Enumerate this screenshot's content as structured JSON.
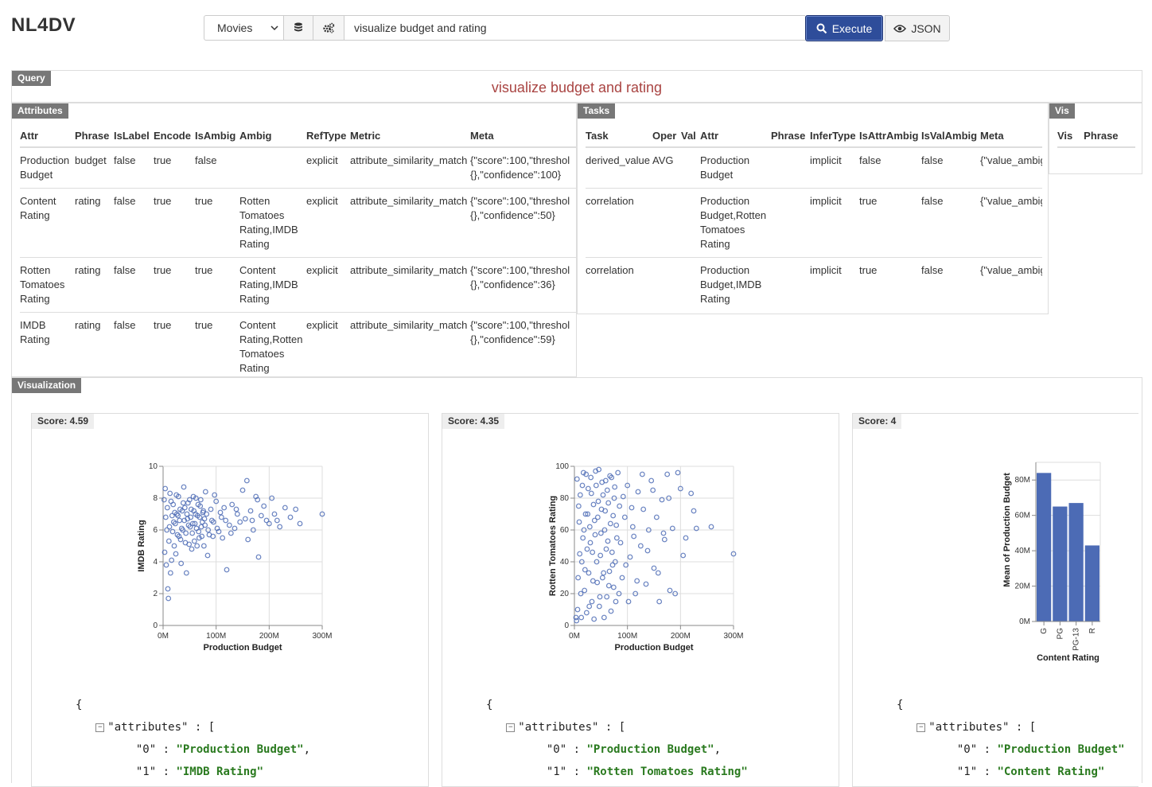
{
  "app": {
    "title": "NL4DV"
  },
  "toolbar": {
    "dataset": "Movies",
    "query": "visualize budget and rating",
    "execute_label": "Execute",
    "json_label": "JSON",
    "accent": "#2e4d9a"
  },
  "panels": {
    "query_tag": "Query",
    "query_text": "visualize budget and rating",
    "attributes_tag": "Attributes",
    "tasks_tag": "Tasks",
    "vis_tag": "Vis",
    "visualization_tag": "Visualization"
  },
  "attributes_table": {
    "headers": [
      "Attr",
      "Phrase",
      "IsLabel",
      "Encode",
      "IsAmbig",
      "Ambig",
      "RefType",
      "Metric",
      "Meta"
    ],
    "rows": [
      {
        "attr": "Production Budget",
        "phrase": "budget",
        "islabel": "false",
        "encode": "true",
        "isambig": "false",
        "ambig": "",
        "reftype": "explicit",
        "metric": "attribute_similarity_match",
        "meta1": "{\"score\":100,\"threshol",
        "meta2": "{},\"confidence\":100}"
      },
      {
        "attr": "Content Rating",
        "phrase": "rating",
        "islabel": "false",
        "encode": "true",
        "isambig": "true",
        "ambig": "Rotten Tomatoes Rating,IMDB Rating",
        "reftype": "explicit",
        "metric": "attribute_similarity_match",
        "meta1": "{\"score\":100,\"threshol",
        "meta2": "{},\"confidence\":50}"
      },
      {
        "attr": "Rotten Tomatoes Rating",
        "phrase": "rating",
        "islabel": "false",
        "encode": "true",
        "isambig": "true",
        "ambig": "Content Rating,IMDB Rating",
        "reftype": "explicit",
        "metric": "attribute_similarity_match",
        "meta1": "{\"score\":100,\"threshol",
        "meta2": "{},\"confidence\":36}"
      },
      {
        "attr": "IMDB Rating",
        "phrase": "rating",
        "islabel": "false",
        "encode": "true",
        "isambig": "true",
        "ambig": "Content Rating,Rotten Tomatoes Rating",
        "reftype": "explicit",
        "metric": "attribute_similarity_match",
        "meta1": "{\"score\":100,\"threshol",
        "meta2": "{},\"confidence\":59}"
      }
    ]
  },
  "tasks_table": {
    "headers": [
      "Task",
      "Oper",
      "Val",
      "Attr",
      "Phrase",
      "InferType",
      "IsAttrAmbig",
      "IsValAmbig",
      "Meta"
    ],
    "rows": [
      {
        "task": "derived_value",
        "oper": "AVG",
        "val": "",
        "attr": "Production Budget",
        "phrase": "",
        "infer": "implicit",
        "isattrambig": "false",
        "isvalambig": "false",
        "meta": "{\"value_ambiguity_t"
      },
      {
        "task": "correlation",
        "oper": "",
        "val": "",
        "attr": "Production Budget,Rotten Tomatoes Rating",
        "phrase": "",
        "infer": "implicit",
        "isattrambig": "true",
        "isvalambig": "false",
        "meta": "{\"value_ambiguity_t"
      },
      {
        "task": "correlation",
        "oper": "",
        "val": "",
        "attr": "Production Budget,IMDB Rating",
        "phrase": "",
        "infer": "implicit",
        "isattrambig": "true",
        "isvalambig": "false",
        "meta": "{\"value_ambiguity_t"
      }
    ]
  },
  "vis_table": {
    "headers": [
      "Vis",
      "Phrase"
    ]
  },
  "cards": [
    {
      "score": "Score: 4.59",
      "json_open": "{",
      "json_key": "\"attributes\"",
      "json_sep": " : [",
      "k0": "\"0\"",
      "v0": "\"Production Budget\"",
      "k1": "\"1\"",
      "v1": "\"IMDB Rating\""
    },
    {
      "score": "Score: 4.35",
      "json_open": "{",
      "json_key": "\"attributes\"",
      "json_sep": " : [",
      "k0": "\"0\"",
      "v0": "\"Production Budget\"",
      "k1": "\"1\"",
      "v1": "\"Rotten Tomatoes Rating\""
    },
    {
      "score": "Score: 4",
      "json_open": "{",
      "json_key": "\"attributes\"",
      "json_sep": " : [",
      "k0": "\"0\"",
      "v0": "\"Production Budget\"",
      "k1": "\"1\"",
      "v1": "\"Content Rating\""
    }
  ],
  "chart_data": [
    {
      "type": "scatter",
      "xlabel": "Production Budget",
      "ylabel": "IMDB Rating",
      "xlim": [
        0,
        300000000
      ],
      "ylim": [
        0,
        10
      ],
      "xticks": [
        "0M",
        "100M",
        "200M",
        "300M"
      ],
      "yticks": [
        "0",
        "2",
        "4",
        "6",
        "8",
        "10"
      ],
      "grid": true,
      "color": "#4c6bb5",
      "points": [
        [
          5000000,
          6.8
        ],
        [
          8000000,
          7.4
        ],
        [
          12000000,
          6.2
        ],
        [
          15000000,
          7.8
        ],
        [
          18000000,
          5.9
        ],
        [
          20000000,
          6.5
        ],
        [
          22000000,
          7.1
        ],
        [
          25000000,
          8.2
        ],
        [
          28000000,
          6.9
        ],
        [
          30000000,
          5.6
        ],
        [
          32000000,
          7.3
        ],
        [
          35000000,
          6.1
        ],
        [
          38000000,
          7.7
        ],
        [
          40000000,
          6.6
        ],
        [
          42000000,
          5.2
        ],
        [
          45000000,
          7.0
        ],
        [
          48000000,
          6.3
        ],
        [
          50000000,
          7.9
        ],
        [
          52000000,
          6.8
        ],
        [
          55000000,
          5.8
        ],
        [
          58000000,
          7.2
        ],
        [
          60000000,
          6.4
        ],
        [
          62000000,
          8.0
        ],
        [
          65000000,
          6.9
        ],
        [
          68000000,
          5.5
        ],
        [
          70000000,
          7.5
        ],
        [
          72000000,
          6.2
        ],
        [
          75000000,
          7.1
        ],
        [
          78000000,
          6.7
        ],
        [
          80000000,
          8.4
        ],
        [
          85000000,
          6.0
        ],
        [
          90000000,
          7.3
        ],
        [
          95000000,
          6.5
        ],
        [
          100000000,
          7.8
        ],
        [
          105000000,
          5.9
        ],
        [
          110000000,
          6.8
        ],
        [
          115000000,
          7.4
        ],
        [
          120000000,
          3.5
        ],
        [
          125000000,
          6.3
        ],
        [
          130000000,
          7.6
        ],
        [
          135000000,
          6.1
        ],
        [
          140000000,
          7.0
        ],
        [
          150000000,
          8.5
        ],
        [
          155000000,
          6.7
        ],
        [
          160000000,
          5.4
        ],
        [
          165000000,
          7.2
        ],
        [
          170000000,
          6.0
        ],
        [
          175000000,
          8.1
        ],
        [
          180000000,
          4.3
        ],
        [
          185000000,
          6.9
        ],
        [
          190000000,
          7.5
        ],
        [
          200000000,
          6.4
        ],
        [
          210000000,
          7.0
        ],
        [
          220000000,
          6.2
        ],
        [
          230000000,
          7.4
        ],
        [
          240000000,
          6.8
        ],
        [
          250000000,
          7.3
        ],
        [
          258000000,
          6.4
        ],
        [
          300000000,
          7.0
        ],
        [
          3000000,
          4.6
        ],
        [
          6000000,
          3.8
        ],
        [
          9000000,
          2.3
        ],
        [
          10000000,
          1.7
        ],
        [
          14000000,
          3.3
        ],
        [
          16000000,
          4.1
        ],
        [
          24000000,
          4.5
        ],
        [
          34000000,
          3.9
        ],
        [
          44000000,
          3.3
        ],
        [
          54000000,
          4.8
        ],
        [
          64000000,
          5.0
        ],
        [
          84000000,
          4.4
        ],
        [
          94000000,
          5.6
        ],
        [
          2000000,
          7.9
        ],
        [
          4000000,
          8.6
        ],
        [
          7000000,
          6.0
        ],
        [
          11000000,
          5.3
        ],
        [
          13000000,
          8.3
        ],
        [
          17000000,
          6.9
        ],
        [
          19000000,
          7.6
        ],
        [
          21000000,
          5.0
        ],
        [
          23000000,
          6.4
        ],
        [
          26000000,
          7.0
        ],
        [
          27000000,
          5.7
        ],
        [
          29000000,
          8.1
        ],
        [
          31000000,
          6.6
        ],
        [
          33000000,
          5.4
        ],
        [
          36000000,
          7.2
        ],
        [
          37000000,
          6.0
        ],
        [
          39000000,
          8.7
        ],
        [
          41000000,
          7.4
        ],
        [
          43000000,
          5.8
        ],
        [
          46000000,
          6.7
        ],
        [
          47000000,
          7.7
        ],
        [
          49000000,
          5.1
        ],
        [
          51000000,
          6.2
        ],
        [
          53000000,
          7.3
        ],
        [
          56000000,
          6.4
        ],
        [
          57000000,
          8.1
        ],
        [
          59000000,
          5.3
        ],
        [
          61000000,
          7.0
        ],
        [
          63000000,
          6.1
        ],
        [
          66000000,
          7.6
        ],
        [
          67000000,
          5.9
        ],
        [
          69000000,
          6.8
        ],
        [
          71000000,
          7.9
        ],
        [
          73000000,
          5.6
        ],
        [
          74000000,
          6.5
        ],
        [
          76000000,
          7.2
        ],
        [
          77000000,
          5.0
        ],
        [
          79000000,
          6.3
        ],
        [
          82000000,
          7.0
        ],
        [
          87000000,
          5.7
        ],
        [
          92000000,
          6.6
        ],
        [
          97000000,
          8.2
        ],
        [
          102000000,
          6.1
        ],
        [
          108000000,
          7.1
        ],
        [
          112000000,
          5.5
        ],
        [
          118000000,
          6.6
        ],
        [
          128000000,
          5.8
        ],
        [
          138000000,
          7.3
        ],
        [
          145000000,
          6.5
        ],
        [
          158000000,
          9.1
        ],
        [
          168000000,
          6.6
        ],
        [
          178000000,
          7.9
        ],
        [
          195000000,
          6.6
        ],
        [
          205000000,
          8.0
        ],
        [
          215000000,
          6.6
        ]
      ]
    },
    {
      "type": "scatter",
      "xlabel": "Production Budget",
      "ylabel": "Rotten Tomatoes Rating",
      "xlim": [
        0,
        300000000
      ],
      "ylim": [
        0,
        100
      ],
      "xticks": [
        "0M",
        "100M",
        "200M",
        "300M"
      ],
      "yticks": [
        "0",
        "20",
        "40",
        "60",
        "80",
        "100"
      ],
      "grid": true,
      "color": "#4c6bb5",
      "points": [
        [
          5000000,
          92
        ],
        [
          8000000,
          75
        ],
        [
          10000000,
          45
        ],
        [
          12000000,
          20
        ],
        [
          15000000,
          88
        ],
        [
          18000000,
          60
        ],
        [
          20000000,
          35
        ],
        [
          22000000,
          95
        ],
        [
          25000000,
          70
        ],
        [
          28000000,
          12
        ],
        [
          30000000,
          52
        ],
        [
          32000000,
          83
        ],
        [
          35000000,
          28
        ],
        [
          38000000,
          66
        ],
        [
          40000000,
          97
        ],
        [
          42000000,
          40
        ],
        [
          45000000,
          78
        ],
        [
          48000000,
          18
        ],
        [
          50000000,
          58
        ],
        [
          52000000,
          90
        ],
        [
          55000000,
          33
        ],
        [
          58000000,
          72
        ],
        [
          60000000,
          48
        ],
        [
          62000000,
          85
        ],
        [
          65000000,
          25
        ],
        [
          68000000,
          64
        ],
        [
          70000000,
          93
        ],
        [
          72000000,
          38
        ],
        [
          75000000,
          80
        ],
        [
          78000000,
          15
        ],
        [
          80000000,
          55
        ],
        [
          85000000,
          75
        ],
        [
          90000000,
          30
        ],
        [
          95000000,
          68
        ],
        [
          100000000,
          88
        ],
        [
          105000000,
          43
        ],
        [
          110000000,
          62
        ],
        [
          115000000,
          20
        ],
        [
          120000000,
          84
        ],
        [
          125000000,
          50
        ],
        [
          130000000,
          73
        ],
        [
          135000000,
          26
        ],
        [
          140000000,
          60
        ],
        [
          145000000,
          91
        ],
        [
          150000000,
          36
        ],
        [
          155000000,
          68
        ],
        [
          160000000,
          15
        ],
        [
          165000000,
          79
        ],
        [
          170000000,
          54
        ],
        [
          175000000,
          95
        ],
        [
          180000000,
          22
        ],
        [
          185000000,
          61
        ],
        [
          190000000,
          20
        ],
        [
          200000000,
          86
        ],
        [
          205000000,
          44
        ],
        [
          210000000,
          55
        ],
        [
          220000000,
          83
        ],
        [
          225000000,
          72
        ],
        [
          230000000,
          61
        ],
        [
          258000000,
          62
        ],
        [
          300000000,
          45
        ],
        [
          3000000,
          5
        ],
        [
          4000000,
          3
        ],
        [
          6000000,
          10
        ],
        [
          7000000,
          30
        ],
        [
          9000000,
          65
        ],
        [
          11000000,
          82
        ],
        [
          13000000,
          5
        ],
        [
          14000000,
          40
        ],
        [
          16000000,
          55
        ],
        [
          17000000,
          96
        ],
        [
          19000000,
          22
        ],
        [
          21000000,
          70
        ],
        [
          23000000,
          8
        ],
        [
          24000000,
          48
        ],
        [
          26000000,
          86
        ],
        [
          27000000,
          33
        ],
        [
          29000000,
          62
        ],
        [
          31000000,
          93
        ],
        [
          33000000,
          15
        ],
        [
          34000000,
          46
        ],
        [
          36000000,
          76
        ],
        [
          37000000,
          4
        ],
        [
          39000000,
          57
        ],
        [
          41000000,
          88
        ],
        [
          43000000,
          27
        ],
        [
          44000000,
          68
        ],
        [
          46000000,
          98
        ],
        [
          47000000,
          12
        ],
        [
          49000000,
          44
        ],
        [
          51000000,
          73
        ],
        [
          53000000,
          30
        ],
        [
          54000000,
          82
        ],
        [
          56000000,
          5
        ],
        [
          57000000,
          60
        ],
        [
          59000000,
          91
        ],
        [
          61000000,
          18
        ],
        [
          63000000,
          53
        ],
        [
          64000000,
          77
        ],
        [
          66000000,
          34
        ],
        [
          67000000,
          94
        ],
        [
          69000000,
          9
        ],
        [
          71000000,
          46
        ],
        [
          73000000,
          69
        ],
        [
          74000000,
          24
        ],
        [
          76000000,
          87
        ],
        [
          77000000,
          40
        ],
        [
          79000000,
          63
        ],
        [
          82000000,
          96
        ],
        [
          84000000,
          20
        ],
        [
          87000000,
          52
        ],
        [
          92000000,
          81
        ],
        [
          97000000,
          38
        ],
        [
          102000000,
          15
        ],
        [
          108000000,
          74
        ],
        [
          112000000,
          56
        ],
        [
          118000000,
          28
        ],
        [
          128000000,
          95
        ],
        [
          138000000,
          47
        ],
        [
          148000000,
          85
        ],
        [
          158000000,
          33
        ],
        [
          168000000,
          58
        ],
        [
          178000000,
          80
        ],
        [
          195000000,
          96
        ]
      ]
    },
    {
      "type": "bar",
      "categories": [
        "G",
        "PG",
        "PG-13",
        "R"
      ],
      "values": [
        84000000,
        65000000,
        67000000,
        43000000
      ],
      "xlabel": "Content Rating",
      "ylabel": "Mean of Production Budget",
      "ylim": [
        0,
        90000000
      ],
      "yticks": [
        "0M",
        "20M",
        "40M",
        "60M",
        "80M"
      ],
      "grid": true,
      "color": "#4c6bb5"
    }
  ]
}
